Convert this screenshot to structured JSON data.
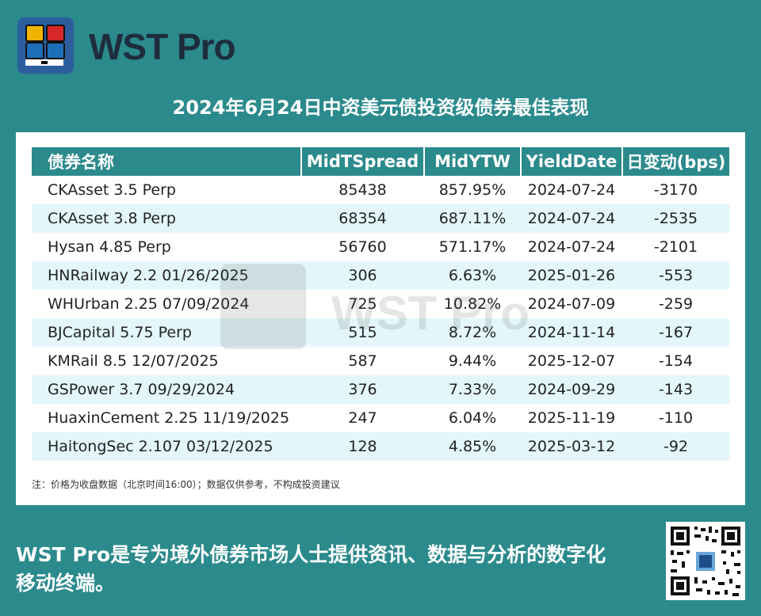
{
  "brand": {
    "name": "WST Pro"
  },
  "title": "2024年6月24日中资美元债投资级债券最佳表现",
  "table": {
    "headers": [
      "债券名称",
      "MidTSpread",
      "MidYTW",
      "YieldDate",
      "日变动(bps)"
    ],
    "rows": [
      [
        "CKAsset 3.5 Perp",
        "85438",
        "857.95%",
        "2024-07-24",
        "-3170"
      ],
      [
        "CKAsset 3.8 Perp",
        "68354",
        "687.11%",
        "2024-07-24",
        "-2535"
      ],
      [
        "Hysan 4.85 Perp",
        "56760",
        "571.17%",
        "2024-07-24",
        "-2101"
      ],
      [
        "HNRailway 2.2 01/26/2025",
        "306",
        "6.63%",
        "2025-01-26",
        "-553"
      ],
      [
        "WHUrban 2.25 07/09/2024",
        "725",
        "10.82%",
        "2024-07-09",
        "-259"
      ],
      [
        "BJCapital 5.75 Perp",
        "515",
        "8.72%",
        "2024-11-14",
        "-167"
      ],
      [
        "KMRail 8.5 12/07/2025",
        "587",
        "9.44%",
        "2025-12-07",
        "-154"
      ],
      [
        "GSPower 3.7 09/29/2024",
        "376",
        "7.33%",
        "2024-09-29",
        "-143"
      ],
      [
        "HuaxinCement 2.25 11/19/2025",
        "247",
        "6.04%",
        "2025-11-19",
        "-110"
      ],
      [
        "HaitongSec 2.107 03/12/2025",
        "128",
        "4.85%",
        "2025-03-12",
        "-92"
      ]
    ]
  },
  "note": "注：价格为收盘数据（北京时间16:00）；数据仅供参考，不构成投资建议",
  "watermark": "WST Pro",
  "footer": "WST Pro是专为境外债券市场人士提供资讯、数据与分析的数字化移动终端。",
  "colors": {
    "background": "#2b8a8c",
    "header": "#2b8a8c",
    "row_alt": "#e3f7fb",
    "logo": "#2c5e9e"
  }
}
